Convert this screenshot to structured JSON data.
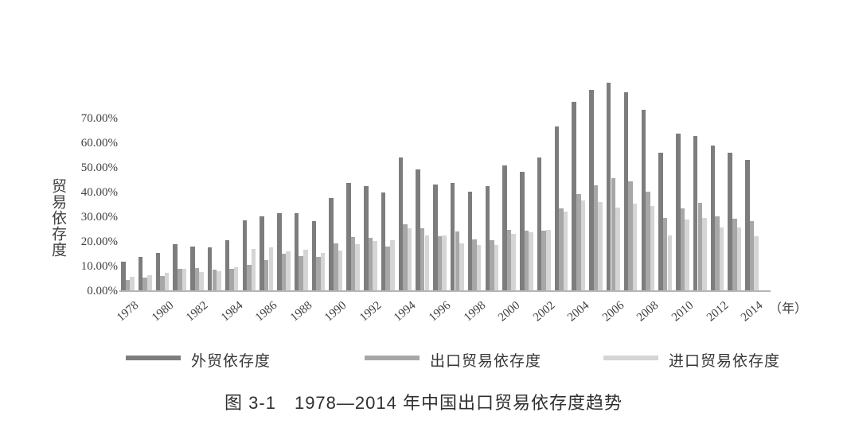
{
  "figure": {
    "caption": "图 3-1　1978—2014 年中国出口贸易依存度趋势"
  },
  "chart_data": {
    "type": "bar",
    "title": "图 3-1　1978—2014 年中国出口贸易依存度趋势",
    "ylabel": "贸易依存度",
    "xlabel": "",
    "x_axis_unit": "（年）",
    "ylim": [
      0,
      85
    ],
    "grid": false,
    "legend_position": "bottom",
    "y_tick_labels": [
      "0.00%",
      "10.00%",
      "20.00%",
      "30.00%",
      "40.00%",
      "50.00%",
      "60.00%",
      "70.00%"
    ],
    "x_tick_labels": [
      "1978",
      "1980",
      "1982",
      "1984",
      "1986",
      "1988",
      "1990",
      "1992",
      "1994",
      "1996",
      "1998",
      "2000",
      "2002",
      "2004",
      "2006",
      "2008",
      "2010",
      "2012",
      "2014"
    ],
    "categories": [
      1978,
      1979,
      1980,
      1981,
      1982,
      1983,
      1984,
      1985,
      1986,
      1987,
      1988,
      1989,
      1990,
      1991,
      1992,
      1993,
      1994,
      1995,
      1996,
      1997,
      1998,
      1999,
      2000,
      2001,
      2002,
      2003,
      2004,
      2005,
      2006,
      2007,
      2008,
      2009,
      2010,
      2011,
      2012,
      2013,
      2014
    ],
    "series": [
      {
        "name": "外贸依存度",
        "color": "#7d7d7d",
        "values": [
          11.9,
          13.9,
          15.5,
          19.0,
          18.1,
          17.7,
          20.6,
          28.7,
          30.3,
          31.6,
          31.6,
          28.4,
          37.7,
          43.9,
          42.6,
          40.1,
          54.2,
          49.4,
          43.3,
          43.9,
          40.4,
          42.6,
          51.1,
          48.5,
          54.3,
          66.8,
          76.8,
          81.5,
          84.5,
          80.5,
          73.5,
          56.0,
          63.9,
          62.9,
          59.0,
          56.1,
          53.2
        ]
      },
      {
        "name": "出口贸易依存度",
        "color": "#a7a7a7",
        "values": [
          4.6,
          5.5,
          6.1,
          9.0,
          9.4,
          8.7,
          9.0,
          10.6,
          12.6,
          15.2,
          14.2,
          13.9,
          19.4,
          22.0,
          21.6,
          18.1,
          27.0,
          25.5,
          22.3,
          24.2,
          21.0,
          20.6,
          24.8,
          24.5,
          24.4,
          33.6,
          39.4,
          43.0,
          45.8,
          44.5,
          40.4,
          29.7,
          33.6,
          35.8,
          30.3,
          29.4,
          28.4
        ]
      },
      {
        "name": "进口贸易依存度",
        "color": "#d5d5d5",
        "values": [
          5.8,
          6.5,
          7.4,
          9.0,
          7.7,
          8.1,
          9.7,
          17.1,
          17.7,
          16.1,
          16.8,
          15.5,
          16.5,
          19.0,
          20.3,
          20.6,
          25.6,
          22.5,
          22.6,
          19.5,
          18.8,
          18.8,
          23.2,
          24.0,
          24.7,
          32.2,
          36.8,
          36.1,
          34.0,
          35.5,
          34.5,
          22.6,
          29.0,
          29.8,
          25.8,
          25.8,
          22.3
        ]
      }
    ]
  }
}
